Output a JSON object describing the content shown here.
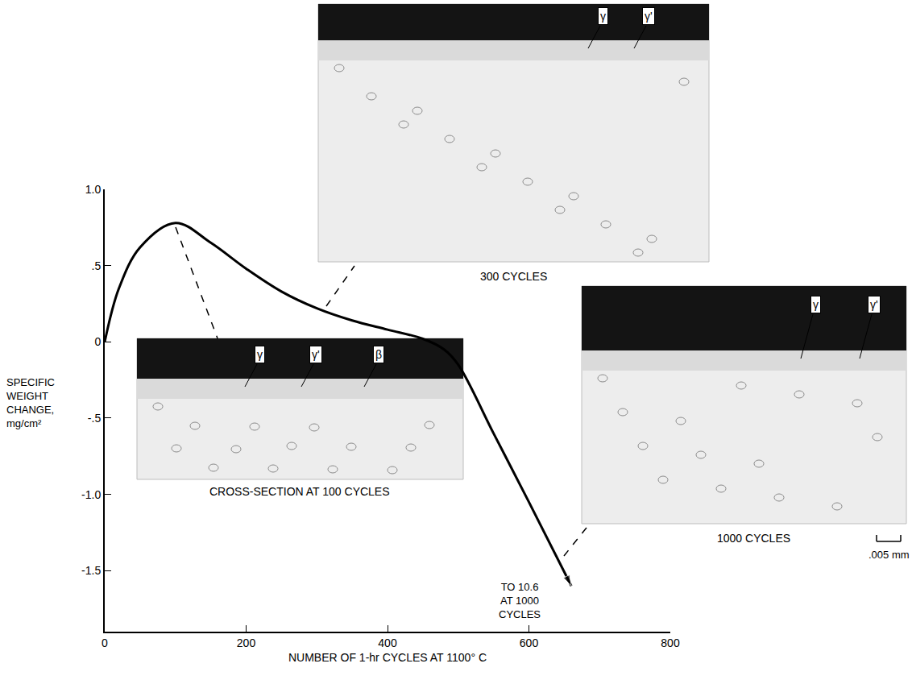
{
  "chart_data": {
    "type": "line",
    "x_label": "NUMBER OF 1-hr CYCLES AT 1100° C",
    "y_label": "SPECIFIC WEIGHT CHANGE, mg/cm²",
    "x": [
      0,
      20,
      50,
      100,
      150,
      200,
      250,
      300,
      350,
      400,
      450,
      480,
      500,
      550,
      600,
      660
    ],
    "values": [
      0,
      0.35,
      0.62,
      0.78,
      0.65,
      0.48,
      0.33,
      0.22,
      0.14,
      0.08,
      0.02,
      -0.05,
      -0.15,
      -0.6,
      -1.05,
      -1.6
    ],
    "color": "#000000",
    "marker": "arrow",
    "grid": false,
    "xlim": [
      0,
      800
    ],
    "xticks": [
      0,
      200,
      400,
      600,
      800
    ],
    "ylim": [
      -1.9,
      1.0
    ],
    "yticks": [
      {
        "value": 1.0,
        "label": "1.0"
      },
      {
        "value": 0.5,
        "label": ".5"
      },
      0,
      {
        "value": -0.5,
        "label": "-.5"
      },
      {
        "value": -1.0,
        "label": "-1.0"
      },
      {
        "value": -1.5,
        "label": "-1.5"
      }
    ],
    "annotations": [
      "TO 10.6 AT 1000 CYCLES"
    ],
    "micrographs": [
      {
        "caption": "CROSS-SECTION AT 100 CYCLES",
        "phases": [
          "γ",
          "γ'",
          "β"
        ]
      },
      {
        "caption": "300 CYCLES",
        "phases": [
          "γ",
          "γ'"
        ]
      },
      {
        "caption": "1000 CYCLES",
        "phases": [
          "γ",
          "γ'"
        ]
      }
    ],
    "scale_bar": ".005 mm"
  }
}
